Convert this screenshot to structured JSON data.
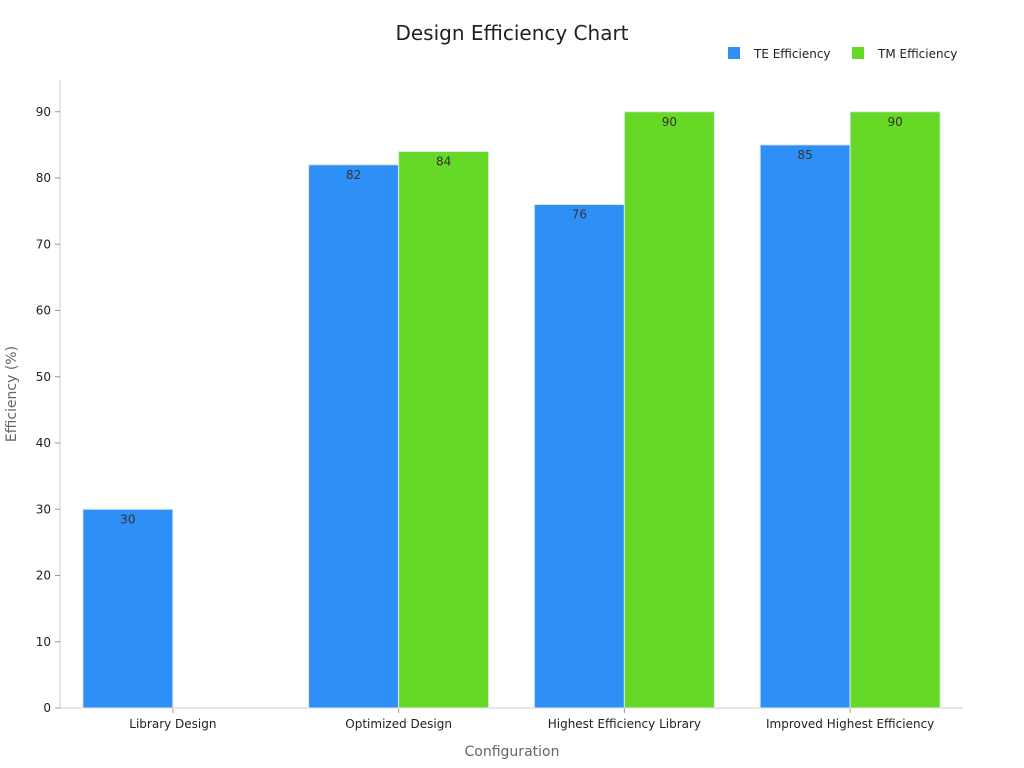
{
  "chart_data": {
    "type": "bar",
    "title": "Design Efficiency Chart",
    "xlabel": "Configuration",
    "ylabel": "Efficiency (%)",
    "ylim": [
      0,
      95
    ],
    "yticks": [
      0,
      10,
      20,
      30,
      40,
      50,
      60,
      70,
      80,
      90
    ],
    "grid": false,
    "legend_position": "top-right",
    "categories": [
      "Library Design",
      "Optimized Design",
      "Highest Efficiency Library",
      "Improved Highest Efficiency"
    ],
    "series": [
      {
        "name": "TE Efficiency",
        "color": "#2e90f6",
        "values": [
          30,
          82,
          76,
          85
        ]
      },
      {
        "name": "TM Efficiency",
        "color": "#66d926",
        "values": [
          null,
          84,
          90,
          90
        ]
      }
    ]
  }
}
